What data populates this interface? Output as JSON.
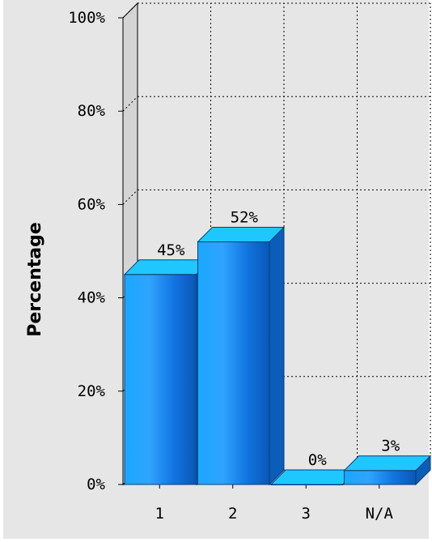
{
  "chart_data": {
    "type": "bar",
    "title": "",
    "xlabel": "",
    "ylabel": "Percentage",
    "categories": [
      "1",
      "2",
      "3",
      "N/A"
    ],
    "values": [
      45,
      52,
      0,
      3
    ],
    "value_labels": [
      "45%",
      "52%",
      "0%",
      "3%"
    ],
    "y_ticks": [
      "0%",
      "20%",
      "40%",
      "60%",
      "80%",
      "100%"
    ],
    "ylim": [
      0,
      100
    ],
    "grid": true,
    "style": "3d",
    "colors": {
      "bar_front": "#1e90ff",
      "bar_light": "#33b5ff",
      "bar_top": "#1ec8ff",
      "bar_side": "#0a5db8",
      "background": "#e6e6e6",
      "wall": "#d4d4d4"
    }
  }
}
